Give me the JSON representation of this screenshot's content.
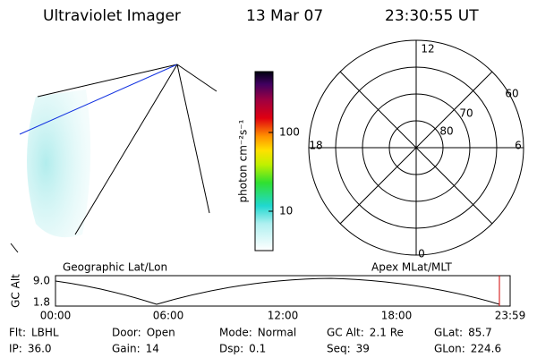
{
  "header": {
    "title": "Ultraviolet Imager",
    "date": "13 Mar 07",
    "time": "23:30:55 UT"
  },
  "colorbar": {
    "label": "photon cm⁻²s⁻¹",
    "ticks": [
      "100",
      "10"
    ]
  },
  "polar": {
    "mlt_labels": [
      "12",
      "18",
      "6",
      "0"
    ],
    "lat_labels": [
      "60",
      "70",
      "80"
    ]
  },
  "altitude_plot": {
    "title_left": "Geographic Lat/Lon",
    "title_right": "Apex MLat/MLT",
    "ylabel": "GC Alt",
    "yticks": [
      "9.0",
      "1.8"
    ],
    "xticks": [
      "00:00",
      "06:00",
      "12:00",
      "18:00",
      "23:59"
    ]
  },
  "status": [
    [
      {
        "label": "Flt:",
        "value": "LBHL"
      },
      {
        "label": "Door:",
        "value": "Open"
      },
      {
        "label": "Mode:",
        "value": "Normal"
      },
      {
        "label": "GC Alt:",
        "value": "2.1 Re"
      },
      {
        "label": "GLat:",
        "value": "85.7"
      }
    ],
    [
      {
        "label": "IP:",
        "value": "36.0"
      },
      {
        "label": "Gain:",
        "value": "14"
      },
      {
        "label": "Dsp:",
        "value": "0.1"
      },
      {
        "label": "Seq:",
        "value": "39"
      },
      {
        "label": "GLon:",
        "value": "224.6"
      }
    ]
  ]
}
